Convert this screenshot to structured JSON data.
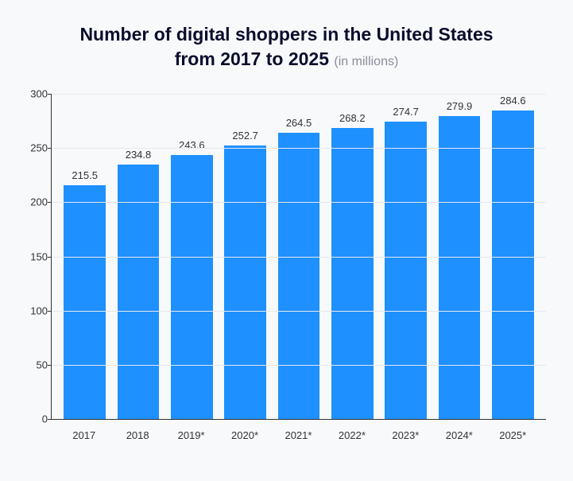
{
  "chart": {
    "type": "bar",
    "title_line1": "Number of digital shoppers in the United States",
    "title_line2": "from 2017 to 2025",
    "subtitle": "(in millions)",
    "title_fontsize": 23,
    "title_color": "#0a0d2c",
    "subtitle_color": "#8a8d9a",
    "categories": [
      "2017",
      "2018",
      "2019*",
      "2020*",
      "2021*",
      "2022*",
      "2023*",
      "2024*",
      "2025*"
    ],
    "values": [
      215.5,
      234.8,
      243.6,
      252.7,
      264.5,
      268.2,
      274.7,
      279.9,
      284.6
    ],
    "bar_color": "#1e90ff",
    "ylim": [
      0,
      300
    ],
    "ytick_step": 50,
    "yticks": [
      0,
      50,
      100,
      150,
      200,
      250,
      300
    ],
    "grid_color": "#e8e8ec",
    "axis_color": "#333333",
    "background_color": "#f8f9fb",
    "label_fontsize": 13,
    "value_fontsize": 13,
    "bar_width": 0.78
  }
}
